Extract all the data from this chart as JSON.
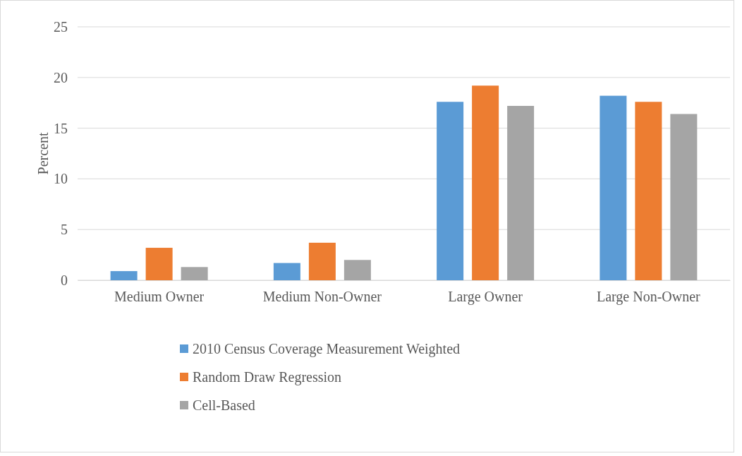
{
  "chart_data": {
    "type": "bar",
    "ylabel": "Percent",
    "categories": [
      "Medium Owner",
      "Medium Non-Owner",
      "Large Owner",
      "Large Non-Owner"
    ],
    "series": [
      {
        "name": "2010 Census Coverage Measurement Weighted",
        "color": "#5b9bd5",
        "values": [
          0.9,
          1.7,
          17.6,
          18.2
        ]
      },
      {
        "name": "Random Draw Regression",
        "color": "#ed7d31",
        "values": [
          3.2,
          3.7,
          19.2,
          17.6
        ]
      },
      {
        "name": "Cell-Based",
        "color": "#a5a5a5",
        "values": [
          1.3,
          2.0,
          17.2,
          16.4
        ]
      }
    ],
    "ylim": [
      0,
      25
    ],
    "yticks": [
      0,
      5,
      10,
      15,
      20,
      25
    ],
    "grid": "y",
    "legend": "bottom"
  }
}
